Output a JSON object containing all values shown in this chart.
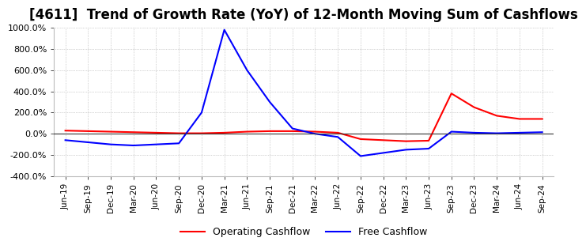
{
  "title": "[4611]  Trend of Growth Rate (YoY) of 12-Month Moving Sum of Cashflows",
  "title_fontsize": 12,
  "ylim": [
    -400,
    1000
  ],
  "yticks": [
    -400,
    -200,
    0,
    200,
    400,
    600,
    800,
    1000
  ],
  "background_color": "#ffffff",
  "grid_color": "#aaaaaa",
  "operating_color": "#ff0000",
  "free_color": "#0000ff",
  "x_labels": [
    "Jun-19",
    "Sep-19",
    "Dec-19",
    "Mar-20",
    "Jun-20",
    "Sep-20",
    "Dec-20",
    "Mar-21",
    "Jun-21",
    "Sep-21",
    "Dec-21",
    "Mar-22",
    "Jun-22",
    "Sep-22",
    "Dec-22",
    "Mar-23",
    "Jun-23",
    "Sep-23",
    "Dec-23",
    "Mar-24",
    "Jun-24",
    "Sep-24"
  ],
  "operating_cashflow": [
    30,
    25,
    20,
    15,
    10,
    5,
    5,
    10,
    20,
    25,
    25,
    20,
    10,
    -50,
    -60,
    -70,
    -65,
    380,
    250,
    170,
    140,
    140
  ],
  "free_cashflow": [
    -60,
    -80,
    -100,
    -110,
    -100,
    -90,
    200,
    980,
    600,
    300,
    50,
    0,
    -30,
    -210,
    -180,
    -150,
    -140,
    20,
    10,
    5,
    10,
    15
  ]
}
